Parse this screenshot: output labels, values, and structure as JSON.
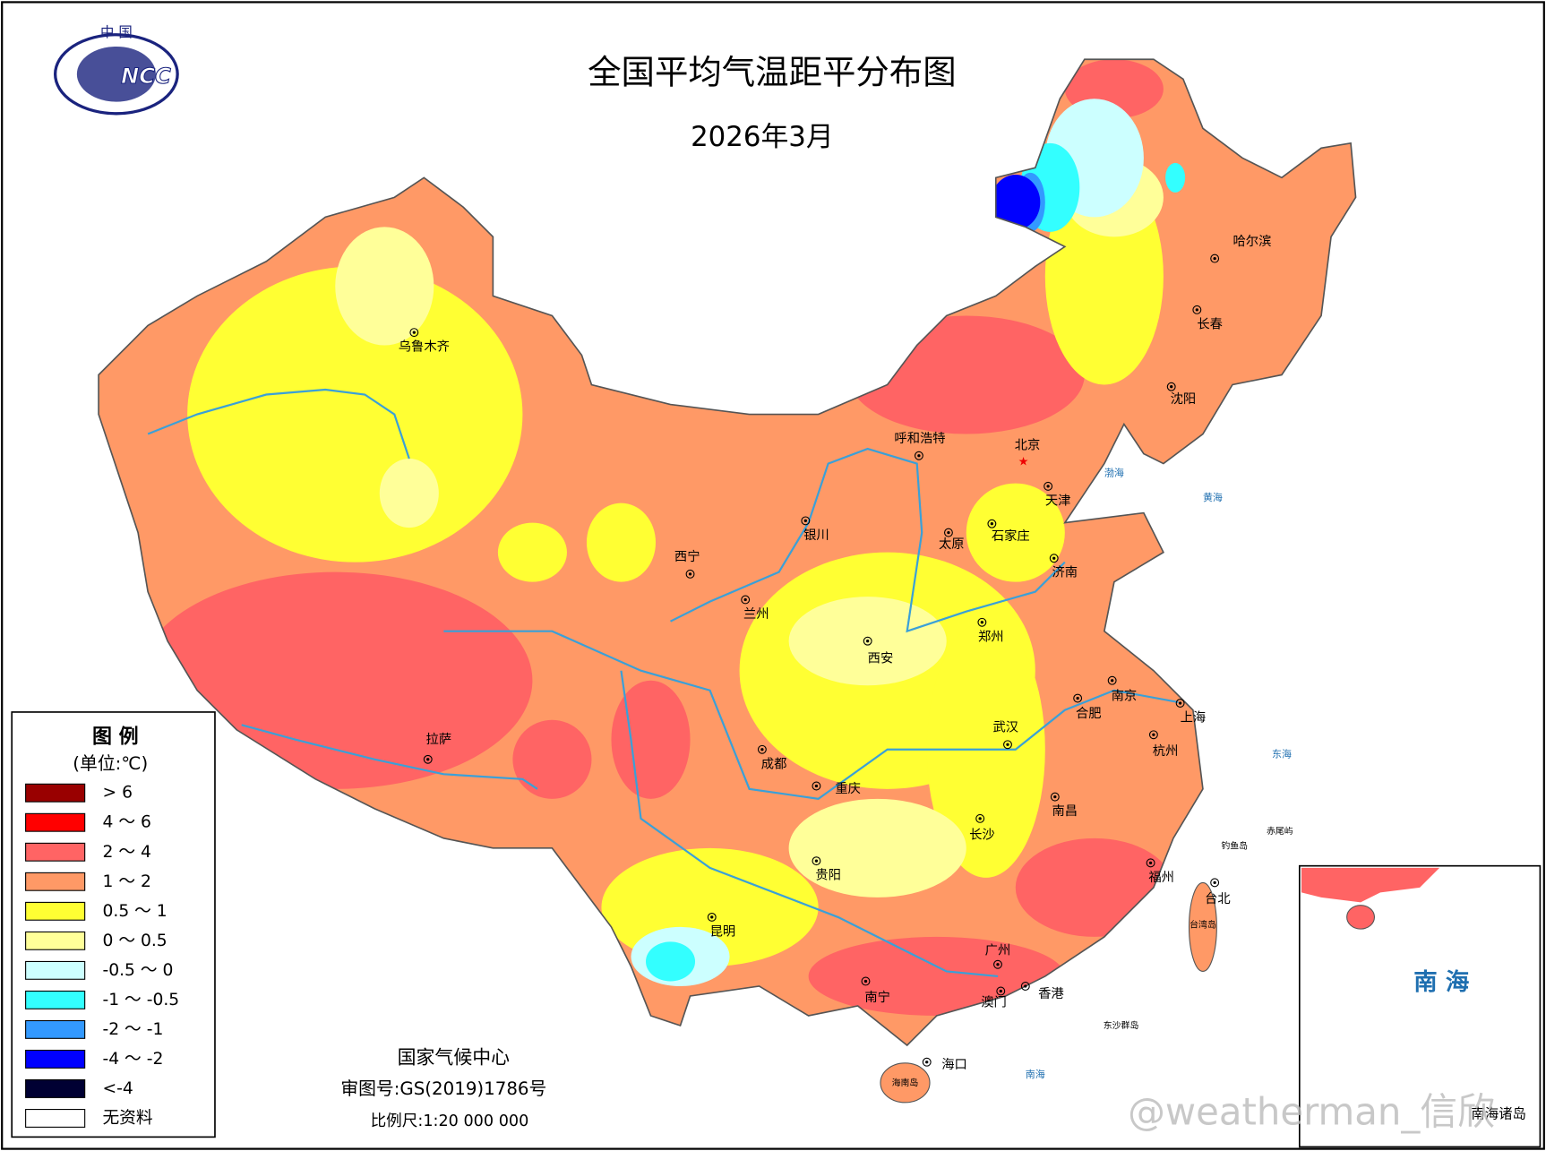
{
  "logo": {
    "top": "中 国",
    "text": "NCC"
  },
  "header": {
    "title": "全国平均气温距平分布图",
    "subtitle": "2026年3月"
  },
  "legend": {
    "title": "图 例",
    "unit": "(单位:℃)",
    "items": [
      {
        "label": "> 6",
        "color": "#990000"
      },
      {
        "label": "4 ～ 6",
        "color": "#ff0000"
      },
      {
        "label": "2 ～ 4",
        "color": "#ff6464"
      },
      {
        "label": "1 ～ 2",
        "color": "#ff9966"
      },
      {
        "label": "0.5 ～ 1",
        "color": "#ffff33"
      },
      {
        "label": "0 ～ 0.5",
        "color": "#ffff99"
      },
      {
        "label": "-0.5 ～ 0",
        "color": "#ccffff"
      },
      {
        "label": "-1 ～ -0.5",
        "color": "#33ffff"
      },
      {
        "label": "-2 ～ -1",
        "color": "#3399ff"
      },
      {
        "label": "-4 ～ -2",
        "color": "#0000ff"
      },
      {
        "label": "<-4",
        "color": "#000033"
      },
      {
        "label": "无资料",
        "color": "#ffffff"
      }
    ]
  },
  "cities": [
    "乌鲁木齐",
    "拉萨",
    "西宁",
    "兰州",
    "银川",
    "成都",
    "重庆",
    "贵阳",
    "昆明",
    "南宁",
    "西安",
    "呼和浩特",
    "太原",
    "石家庄",
    "北京",
    "天津",
    "济南",
    "郑州",
    "武汉",
    "长沙",
    "南昌",
    "合肥",
    "南京",
    "上海",
    "杭州",
    "福州",
    "台北",
    "广州",
    "香港",
    "澳门",
    "海口",
    "哈尔滨",
    "长春",
    "沈阳"
  ],
  "seas": [
    "渤海",
    "黄海",
    "东海",
    "南海"
  ],
  "islands": [
    "台湾岛",
    "海南岛",
    "钓鱼岛",
    "赤尾屿",
    "东沙群岛"
  ],
  "inset": {
    "label": "南 海",
    "caption": "南海诸岛"
  },
  "footer": {
    "org": "国家气候中心",
    "approval": "审图号:GS(2019)1786号",
    "scale": "比例尺:1:20 000 000"
  },
  "watermark": "@weatherman_信欣"
}
